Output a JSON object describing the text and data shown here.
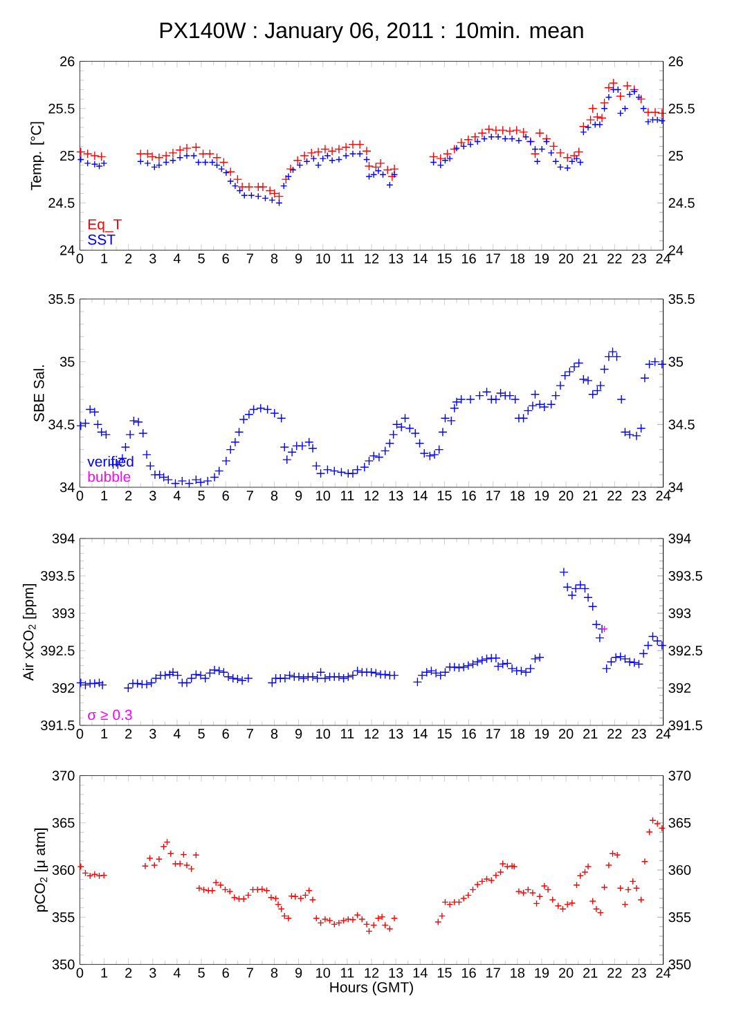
{
  "chart_data": [
    {
      "type": "scatter",
      "title": "PX140W : January 06, 2011 : 10min. mean",
      "ylabel": "Temp. [°C]",
      "marker": "cross",
      "legend": "bottom left",
      "xlim": [
        0,
        24
      ],
      "xticks": [
        0,
        1,
        2,
        3,
        4,
        5,
        6,
        7,
        8,
        9,
        10,
        11,
        12,
        13,
        14,
        15,
        16,
        17,
        18,
        19,
        20,
        21,
        22,
        23,
        24
      ],
      "ylim": [
        24,
        26
      ],
      "yticks": [
        24,
        24.5,
        25,
        25.5,
        26
      ],
      "y2lim": [
        24,
        26
      ],
      "y2ticks": [
        24,
        24.5,
        25,
        25.5,
        26
      ],
      "series": [
        {
          "name": "Eq_T",
          "color": "#ff0000",
          "x": [
            0.04,
            0.32,
            0.61,
            0.89,
            2.5,
            2.79,
            2.98,
            3.26,
            3.55,
            3.83,
            4.12,
            4.4,
            4.78,
            5.07,
            5.35,
            5.64,
            5.92,
            6.2,
            6.49,
            6.68,
            6.96,
            7.34,
            7.53,
            7.82,
            8.01,
            8.2,
            8.48,
            8.67,
            8.96,
            9.24,
            9.53,
            9.81,
            10.09,
            10.38,
            10.66,
            10.95,
            11.23,
            11.52,
            11.8,
            11.9,
            12.18,
            12.37,
            12.66,
            12.85,
            12.94,
            14.55,
            14.84,
            15.12,
            15.41,
            15.69,
            15.98,
            16.26,
            16.55,
            16.83,
            17.12,
            17.4,
            17.69,
            17.97,
            18.25,
            18.54,
            18.73,
            18.92,
            19.2,
            19.49,
            19.77,
            20.06,
            20.34,
            20.53,
            20.72,
            21.01,
            21.1,
            21.29,
            21.48,
            21.58,
            21.76,
            21.95,
            22.24,
            22.52,
            22.81,
            23.09,
            23.38,
            23.67,
            23.95
          ],
          "values": [
            25.04,
            25.02,
            25.0,
            24.99,
            25.02,
            25.02,
            24.99,
            24.98,
            25.0,
            25.03,
            25.06,
            25.08,
            25.09,
            25.02,
            25.02,
            24.98,
            24.93,
            24.83,
            24.75,
            24.67,
            24.67,
            24.67,
            24.67,
            24.63,
            24.6,
            24.57,
            24.75,
            24.86,
            24.95,
            25.0,
            25.03,
            25.04,
            25.07,
            25.05,
            25.07,
            25.09,
            25.12,
            25.12,
            25.05,
            24.89,
            24.88,
            24.92,
            24.85,
            24.78,
            24.86,
            24.99,
            24.97,
            25.02,
            25.07,
            25.14,
            25.17,
            25.2,
            25.24,
            25.28,
            25.27,
            25.27,
            25.26,
            25.27,
            25.25,
            25.15,
            25.02,
            25.24,
            25.18,
            25.1,
            25.03,
            24.98,
            25.0,
            25.04,
            25.31,
            25.38,
            25.5,
            25.41,
            25.4,
            25.56,
            25.72,
            25.77,
            25.63,
            25.74,
            25.7,
            25.6,
            25.46,
            25.46,
            25.45
          ]
        },
        {
          "name": "SST",
          "color": "#0000ff",
          "x": [
            0.04,
            0.32,
            0.61,
            0.8,
            0.99,
            2.5,
            2.79,
            3.07,
            3.26,
            3.55,
            3.83,
            4.12,
            4.4,
            4.69,
            4.88,
            5.16,
            5.45,
            5.64,
            5.83,
            6.02,
            6.2,
            6.39,
            6.58,
            6.77,
            7.06,
            7.34,
            7.63,
            7.91,
            8.2,
            8.39,
            8.58,
            8.77,
            9.05,
            9.34,
            9.62,
            9.81,
            10.0,
            10.19,
            10.38,
            10.66,
            10.95,
            11.23,
            11.52,
            11.8,
            11.9,
            12.09,
            12.28,
            12.47,
            12.75,
            12.94,
            14.55,
            14.84,
            15.03,
            15.22,
            15.5,
            15.79,
            16.07,
            16.36,
            16.64,
            16.93,
            17.21,
            17.5,
            17.78,
            18.06,
            18.35,
            18.54,
            18.73,
            18.82,
            19.01,
            19.2,
            19.39,
            19.58,
            19.77,
            20.06,
            20.25,
            20.44,
            20.59,
            20.72,
            20.91,
            21.2,
            21.39,
            21.58,
            21.76,
            21.95,
            22.14,
            22.24,
            22.43,
            22.62,
            22.81,
            23.0,
            23.19,
            23.38,
            23.57,
            23.76,
            23.95
          ],
          "values": [
            24.96,
            24.92,
            24.91,
            24.89,
            24.92,
            24.94,
            24.92,
            24.88,
            24.9,
            24.93,
            24.95,
            24.98,
            25.0,
            25.0,
            24.93,
            24.93,
            24.93,
            24.9,
            24.86,
            24.82,
            24.73,
            24.68,
            24.63,
            24.58,
            24.58,
            24.57,
            24.55,
            24.53,
            24.5,
            24.68,
            24.78,
            24.85,
            24.9,
            24.94,
            24.97,
            24.9,
            24.97,
            25.0,
            24.95,
            24.96,
            25.0,
            25.02,
            25.02,
            24.96,
            24.78,
            24.8,
            24.84,
            24.8,
            24.69,
            24.8,
            24.93,
            24.9,
            24.95,
            24.97,
            25.08,
            25.1,
            25.12,
            25.15,
            25.18,
            25.2,
            25.2,
            25.18,
            25.18,
            25.16,
            25.2,
            25.15,
            25.07,
            24.94,
            25.07,
            25.15,
            25.03,
            24.94,
            24.88,
            24.87,
            24.94,
            24.97,
            24.93,
            25.25,
            25.3,
            25.33,
            25.33,
            25.5,
            25.62,
            25.7,
            25.7,
            25.45,
            25.5,
            25.65,
            25.68,
            25.62,
            25.5,
            25.36,
            25.38,
            25.38,
            25.37
          ]
        }
      ]
    },
    {
      "type": "scatter",
      "ylabel": "SBE Sal.",
      "marker": "cross",
      "legend": "bottom left",
      "xlim": [
        0,
        24
      ],
      "xticks": [
        0,
        1,
        2,
        3,
        4,
        5,
        6,
        7,
        8,
        9,
        10,
        11,
        12,
        13,
        14,
        15,
        16,
        17,
        18,
        19,
        20,
        21,
        22,
        23,
        24
      ],
      "ylim": [
        34,
        35.5
      ],
      "yticks": [
        34,
        34.5,
        35,
        35.5
      ],
      "y2lim": [
        34,
        35.5
      ],
      "y2ticks": [
        34,
        34.5,
        35,
        35.5
      ],
      "series": [
        {
          "name": "verified",
          "color": "#0000ff",
          "x": [
            0.04,
            0.23,
            0.42,
            0.61,
            0.74,
            0.89,
            1.08,
            1.37,
            1.56,
            1.75,
            1.88,
            2.07,
            2.22,
            2.41,
            2.6,
            2.75,
            2.9,
            3.09,
            3.28,
            3.45,
            3.64,
            3.93,
            4.21,
            4.5,
            4.78,
            4.97,
            5.26,
            5.54,
            5.73,
            6.02,
            6.2,
            6.39,
            6.55,
            6.74,
            6.96,
            7.15,
            7.44,
            7.72,
            8.01,
            8.29,
            8.42,
            8.52,
            8.73,
            8.92,
            9.15,
            9.43,
            9.58,
            9.73,
            9.91,
            10.19,
            10.47,
            10.76,
            11.04,
            11.23,
            11.42,
            11.71,
            11.9,
            12.09,
            12.31,
            12.56,
            12.75,
            12.9,
            13.04,
            13.23,
            13.38,
            13.57,
            13.8,
            13.98,
            14.17,
            14.4,
            14.59,
            14.78,
            14.93,
            15.03,
            15.28,
            15.41,
            15.5,
            15.69,
            16.07,
            16.45,
            16.74,
            16.93,
            17.12,
            17.31,
            17.5,
            17.69,
            17.91,
            18.06,
            18.25,
            18.44,
            18.63,
            18.73,
            18.92,
            19.11,
            19.39,
            19.58,
            19.77,
            19.96,
            20.15,
            20.34,
            20.53,
            20.72,
            20.91,
            21.1,
            21.29,
            21.42,
            21.58,
            21.76,
            21.92,
            22.09,
            22.28,
            22.43,
            22.62,
            22.9,
            23.09,
            23.24,
            23.43,
            23.66,
            23.95
          ],
          "values": [
            34.49,
            34.51,
            34.62,
            34.6,
            34.5,
            34.44,
            34.42,
            34.18,
            34.18,
            34.23,
            34.32,
            34.42,
            34.53,
            34.52,
            34.43,
            34.26,
            34.17,
            34.1,
            34.1,
            34.08,
            34.06,
            34.03,
            34.05,
            34.03,
            34.06,
            34.04,
            34.05,
            34.08,
            34.13,
            34.21,
            34.3,
            34.36,
            34.44,
            34.54,
            34.58,
            34.62,
            34.63,
            34.62,
            34.59,
            34.55,
            34.32,
            34.22,
            34.28,
            34.33,
            34.33,
            34.36,
            34.31,
            34.17,
            34.11,
            34.14,
            34.13,
            34.12,
            34.11,
            34.11,
            34.14,
            34.16,
            34.21,
            34.25,
            34.24,
            34.29,
            34.35,
            34.42,
            34.5,
            34.48,
            34.55,
            34.47,
            34.43,
            34.35,
            34.27,
            34.25,
            34.26,
            34.3,
            34.44,
            34.55,
            34.53,
            34.63,
            34.68,
            34.7,
            34.7,
            34.73,
            34.76,
            34.7,
            34.7,
            34.75,
            34.73,
            34.73,
            34.7,
            34.55,
            34.55,
            34.61,
            34.65,
            34.74,
            34.66,
            34.64,
            34.66,
            34.73,
            34.81,
            34.89,
            34.92,
            34.96,
            34.99,
            34.86,
            34.85,
            34.74,
            34.77,
            34.81,
            34.94,
            35.04,
            35.08,
            35.04,
            34.7,
            34.44,
            34.42,
            34.41,
            34.47,
            34.87,
            34.98,
            35.0,
            34.98
          ]
        },
        {
          "name": "bubble",
          "color": "#ff00ff"
        }
      ]
    },
    {
      "type": "scatter",
      "ylabel": "Air xCO$_{2}$ [ppm]",
      "marker": "cross",
      "legend": "bottom left",
      "xlim": [
        0,
        24
      ],
      "xticks": [
        0,
        1,
        2,
        3,
        4,
        5,
        6,
        7,
        8,
        9,
        10,
        11,
        12,
        13,
        14,
        15,
        16,
        17,
        18,
        19,
        20,
        21,
        22,
        23,
        24
      ],
      "ylim": [
        391.5,
        394
      ],
      "yticks": [
        391.5,
        392,
        392.5,
        393,
        393.5,
        394
      ],
      "y2lim": [
        391.5,
        394
      ],
      "y2ticks": [
        391.5,
        392,
        392.5,
        393,
        393.5,
        394
      ],
      "series": [
        {
          "color": "#0000ff",
          "x": [
            0.04,
            0.23,
            0.42,
            0.61,
            0.8,
            0.93,
            1.99,
            2.18,
            2.37,
            2.56,
            2.75,
            2.94,
            3.13,
            3.32,
            3.51,
            3.7,
            3.83,
            4.02,
            4.21,
            4.4,
            4.59,
            4.78,
            4.97,
            5.16,
            5.35,
            5.54,
            5.73,
            5.92,
            6.11,
            6.3,
            6.49,
            6.68,
            6.93,
            7.91,
            8.06,
            8.25,
            8.44,
            8.63,
            8.82,
            9.01,
            9.2,
            9.39,
            9.58,
            9.77,
            9.91,
            10.09,
            10.28,
            10.47,
            10.66,
            10.85,
            11.04,
            11.23,
            11.42,
            11.61,
            11.8,
            11.99,
            12.18,
            12.37,
            12.56,
            12.75,
            12.94,
            13.89,
            14.08,
            14.27,
            14.46,
            14.65,
            14.84,
            15.03,
            15.22,
            15.41,
            15.6,
            15.79,
            15.98,
            16.17,
            16.36,
            16.55,
            16.74,
            16.93,
            17.12,
            17.21,
            17.4,
            17.59,
            17.78,
            17.97,
            18.16,
            18.35,
            18.54,
            18.73,
            18.92,
            19.91,
            20.06,
            20.25,
            20.4,
            20.59,
            20.78,
            20.91,
            21.1,
            21.25,
            21.39,
            21.48,
            21.67,
            21.86,
            22.05,
            22.24,
            22.43,
            22.62,
            22.81,
            23.0,
            23.19,
            23.38,
            23.57,
            23.76,
            23.95
          ],
          "values": [
            392.07,
            392.04,
            392.06,
            392.06,
            392.07,
            392.04,
            392.0,
            392.06,
            392.06,
            392.05,
            392.05,
            392.07,
            392.13,
            392.17,
            392.17,
            392.18,
            392.21,
            392.17,
            392.07,
            392.07,
            392.13,
            392.18,
            392.17,
            392.13,
            392.2,
            392.24,
            392.23,
            392.21,
            392.15,
            392.13,
            392.12,
            392.1,
            392.13,
            392.07,
            392.13,
            392.13,
            392.13,
            392.17,
            392.15,
            392.15,
            392.13,
            392.15,
            392.15,
            392.13,
            392.21,
            392.13,
            392.15,
            392.15,
            392.15,
            392.13,
            392.15,
            392.17,
            392.23,
            392.21,
            392.21,
            392.21,
            392.2,
            392.18,
            392.18,
            392.17,
            392.17,
            392.08,
            392.17,
            392.21,
            392.23,
            392.2,
            392.17,
            392.21,
            392.28,
            392.28,
            392.27,
            392.28,
            392.3,
            392.32,
            392.35,
            392.37,
            392.39,
            392.4,
            392.4,
            392.29,
            392.32,
            392.33,
            392.26,
            392.23,
            392.23,
            392.21,
            392.26,
            392.39,
            392.41,
            393.55,
            393.35,
            393.24,
            393.33,
            393.38,
            393.33,
            393.21,
            393.09,
            392.85,
            392.67,
            392.79,
            392.26,
            392.35,
            392.41,
            392.42,
            392.39,
            392.35,
            392.34,
            392.32,
            392.46,
            392.57,
            392.69,
            392.63,
            392.57
          ]
        },
        {
          "name": "σ ≥ 0.3",
          "color": "#ff00ff",
          "x": [
            21.58
          ],
          "values": [
            392.79
          ]
        }
      ]
    },
    {
      "type": "scatter",
      "ylabel": "pCO$_{2}$ [μ atm]",
      "xlabel": "Hours (GMT)",
      "marker": "cross",
      "color": "#ff0000",
      "xlim": [
        0,
        24
      ],
      "xticks": [
        0,
        1,
        2,
        3,
        4,
        5,
        6,
        7,
        8,
        9,
        10,
        11,
        12,
        13,
        14,
        15,
        16,
        17,
        18,
        19,
        20,
        21,
        22,
        23,
        24
      ],
      "ylim": [
        350,
        370
      ],
      "yticks": [
        350,
        355,
        360,
        365,
        370
      ],
      "y2lim": [
        350,
        370
      ],
      "y2ticks": [
        350,
        355,
        360,
        365,
        370
      ],
      "x": [
        0.04,
        0.23,
        0.42,
        0.61,
        0.8,
        0.99,
        2.69,
        2.88,
        3.07,
        3.26,
        3.45,
        3.59,
        3.74,
        3.93,
        4.12,
        4.27,
        4.4,
        4.59,
        4.78,
        4.91,
        5.1,
        5.29,
        5.45,
        5.6,
        5.79,
        5.98,
        6.17,
        6.36,
        6.55,
        6.74,
        6.93,
        7.12,
        7.31,
        7.5,
        7.69,
        7.87,
        8.06,
        8.16,
        8.29,
        8.42,
        8.58,
        8.71,
        8.86,
        9.09,
        9.28,
        9.43,
        9.58,
        9.73,
        9.91,
        10.09,
        10.28,
        10.47,
        10.66,
        10.85,
        11.04,
        11.23,
        11.42,
        11.61,
        11.8,
        11.9,
        12.09,
        12.28,
        12.43,
        12.56,
        12.75,
        12.94,
        14.74,
        14.9,
        15.03,
        15.22,
        15.41,
        15.6,
        15.79,
        15.98,
        16.17,
        16.36,
        16.55,
        16.74,
        16.93,
        17.12,
        17.31,
        17.4,
        17.59,
        17.78,
        17.87,
        18.06,
        18.25,
        18.44,
        18.63,
        18.79,
        18.92,
        19.11,
        19.26,
        19.45,
        19.68,
        19.87,
        20.06,
        20.25,
        20.44,
        20.59,
        20.78,
        20.91,
        21.1,
        21.25,
        21.42,
        21.58,
        21.76,
        21.92,
        22.11,
        22.24,
        22.43,
        22.56,
        22.75,
        22.9,
        23.09,
        23.24,
        23.43,
        23.57,
        23.76,
        23.95
      ],
      "values": [
        360.37,
        359.68,
        359.39,
        359.54,
        359.39,
        359.44,
        360.42,
        361.25,
        360.51,
        361.15,
        362.47,
        362.96,
        361.74,
        360.66,
        360.66,
        361.64,
        360.51,
        360.12,
        361.59,
        358.07,
        357.92,
        357.82,
        357.82,
        358.66,
        358.41,
        357.92,
        357.73,
        357.09,
        356.94,
        356.94,
        357.33,
        357.92,
        357.92,
        357.97,
        357.82,
        357.09,
        356.99,
        356.36,
        355.87,
        355.13,
        354.89,
        357.24,
        357.19,
        356.99,
        357.33,
        357.82,
        356.85,
        354.89,
        354.4,
        354.79,
        354.65,
        354.25,
        354.4,
        354.65,
        354.79,
        354.74,
        355.23,
        354.79,
        354.25,
        353.52,
        354.16,
        354.89,
        355.04,
        354.16,
        353.77,
        354.89,
        354.5,
        355.13,
        356.6,
        356.36,
        356.6,
        356.6,
        356.99,
        357.33,
        357.92,
        358.46,
        358.8,
        359.05,
        358.9,
        359.44,
        359.78,
        360.66,
        360.37,
        360.42,
        360.37,
        357.73,
        357.58,
        357.92,
        357.58,
        356.45,
        357.19,
        358.31,
        357.92,
        356.85,
        356.21,
        355.87,
        356.36,
        356.5,
        358.41,
        359.39,
        359.78,
        360.37,
        356.7,
        355.87,
        355.48,
        358.17,
        360.51,
        361.74,
        361.59,
        358.07,
        356.36,
        357.92,
        358.8,
        358.07,
        356.85,
        360.9,
        364.03,
        365.26,
        364.91,
        364.43
      ]
    }
  ]
}
